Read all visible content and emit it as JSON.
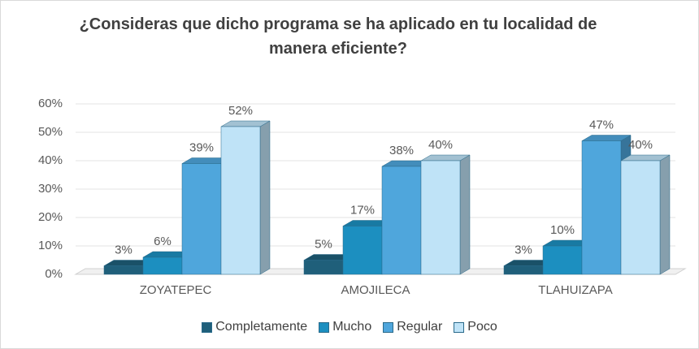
{
  "chart_data": {
    "type": "bar",
    "title": "¿Consideras que dicho programa se ha aplicado en tu localidad de manera eficiente?",
    "categories": [
      "ZOYATEPEC",
      "AMOJILECA",
      "TLAHUIZAPA"
    ],
    "series": [
      {
        "name": "Completamente",
        "color": "#1f5f7a",
        "values": [
          3,
          5,
          3
        ],
        "value_labels": [
          "3%",
          "5%",
          "3%"
        ]
      },
      {
        "name": "Mucho",
        "color": "#1c8fc0",
        "values": [
          6,
          17,
          10
        ],
        "value_labels": [
          "6%",
          "17%",
          "10%"
        ]
      },
      {
        "name": "Regular",
        "color": "#4fa6dc",
        "values": [
          39,
          38,
          47
        ],
        "value_labels": [
          "39%",
          "38%",
          "47%"
        ]
      },
      {
        "name": "Poco",
        "color": "#bfe3f7",
        "values": [
          52,
          40,
          40
        ],
        "value_labels": [
          "52%",
          "40%",
          "40%"
        ]
      }
    ],
    "ylim": [
      0,
      60
    ],
    "yticks": [
      {
        "value": 0,
        "label": "0%"
      },
      {
        "value": 10,
        "label": "10%"
      },
      {
        "value": 20,
        "label": "20%"
      },
      {
        "value": 30,
        "label": "30%"
      },
      {
        "value": 40,
        "label": "40%"
      },
      {
        "value": 50,
        "label": "50%"
      },
      {
        "value": 60,
        "label": "60%"
      }
    ],
    "grid": true,
    "legend": "bottom"
  }
}
